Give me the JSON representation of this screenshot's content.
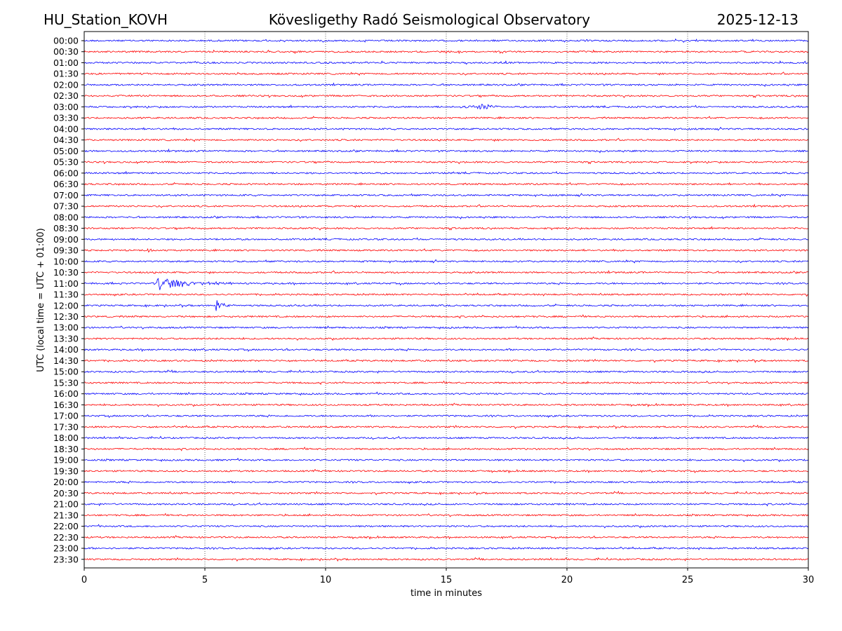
{
  "chart_data": {
    "type": "line",
    "title": "Kövesligethy Radó Seismological Observatory",
    "station": "HU_Station_KOVH",
    "date": "2025-12-13",
    "xlabel": "time in minutes",
    "ylabel": "UTC (local time = UTC + 01:00)",
    "xlim": [
      0,
      30
    ],
    "x_ticks": [
      "0",
      "5",
      "10",
      "15",
      "20",
      "25",
      "30"
    ],
    "x_tick_values": [
      0,
      5,
      10,
      15,
      20,
      25,
      30
    ],
    "grid": "vertical dotted lines at 5-minute intervals",
    "trace_colors": [
      "#0000ff",
      "#ff0000"
    ],
    "rows": [
      "00:00",
      "00:30",
      "01:00",
      "01:30",
      "02:00",
      "02:30",
      "03:00",
      "03:30",
      "04:00",
      "04:30",
      "05:00",
      "05:30",
      "06:00",
      "06:30",
      "07:00",
      "07:30",
      "08:00",
      "08:30",
      "09:00",
      "09:30",
      "10:00",
      "10:30",
      "11:00",
      "11:30",
      "12:00",
      "12:30",
      "13:00",
      "13:30",
      "14:00",
      "14:30",
      "15:00",
      "15:30",
      "16:00",
      "16:30",
      "17:00",
      "17:30",
      "18:00",
      "18:30",
      "19:00",
      "19:30",
      "20:00",
      "20:30",
      "21:00",
      "21:30",
      "22:00",
      "22:30",
      "23:00",
      "23:30"
    ],
    "events": [
      {
        "row": "03:00",
        "start_min": 15.5,
        "peak_min": 16.6,
        "end_min": 17.6,
        "amplitude": 0.5
      },
      {
        "row": "09:30",
        "start_min": 2.5,
        "peak_min": 2.7,
        "end_min": 3.0,
        "amplitude": 0.3
      },
      {
        "row": "11:00",
        "start_min": 3.0,
        "peak_min": 3.05,
        "end_min": 7.0,
        "amplitude": 1.0
      },
      {
        "row": "12:00",
        "start_min": 5.4,
        "peak_min": 5.45,
        "end_min": 6.2,
        "amplitude": 1.2
      },
      {
        "row": "12:30",
        "start_min": 3.0,
        "peak_min": 3.05,
        "end_min": 3.2,
        "amplitude": 0.25
      }
    ]
  }
}
